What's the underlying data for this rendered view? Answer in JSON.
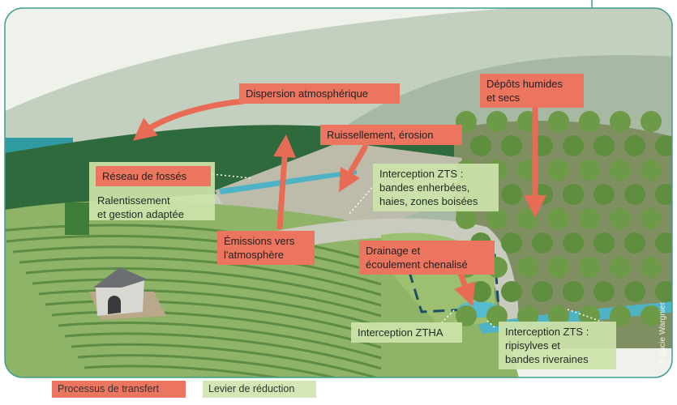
{
  "labels": {
    "dispersion": [
      "Dispersion atmosphérique"
    ],
    "depots": [
      "Dépôts humides",
      "et secs"
    ],
    "ruissellement": [
      "Ruissellement, érosion"
    ],
    "reseau": [
      "Réseau de fossés"
    ],
    "ralentissement": [
      "Ralentissement",
      "et gestion adaptée"
    ],
    "interception_zts_haut": [
      "Interception ZTS :",
      "bandes enherbées,",
      "haies, zones boisées"
    ],
    "emissions": [
      "Émissions vers",
      "l'atmosphère"
    ],
    "drainage": [
      "Drainage et",
      "écoulement chenalisé"
    ],
    "interception_ztha": [
      "Interception ZTHA"
    ],
    "interception_zts_bas": [
      "Interception ZTS :",
      "ripisylves et",
      "bandes riveraines"
    ]
  },
  "legend": {
    "transfer": "Processus de transfert",
    "reduction": "Levier de réduction"
  },
  "credit": "© Lucie Wargnier"
}
